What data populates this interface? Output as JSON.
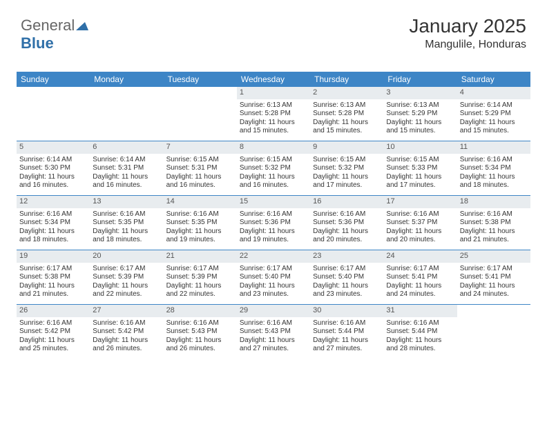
{
  "logo": {
    "part1": "General",
    "part2": "Blue"
  },
  "title": "January 2025",
  "location": "Mangulile, Honduras",
  "colors": {
    "header_bg": "#3d85c6",
    "header_text": "#ffffff",
    "daynum_bg": "#e8ecef",
    "body_text": "#333333",
    "rule": "#3d85c6"
  },
  "day_headers": [
    "Sunday",
    "Monday",
    "Tuesday",
    "Wednesday",
    "Thursday",
    "Friday",
    "Saturday"
  ],
  "first_weekday_index": 3,
  "days_in_month": 31,
  "day_data": {
    "1": {
      "sunrise": "6:13 AM",
      "sunset": "5:28 PM",
      "daylight": "11 hours and 15 minutes."
    },
    "2": {
      "sunrise": "6:13 AM",
      "sunset": "5:28 PM",
      "daylight": "11 hours and 15 minutes."
    },
    "3": {
      "sunrise": "6:13 AM",
      "sunset": "5:29 PM",
      "daylight": "11 hours and 15 minutes."
    },
    "4": {
      "sunrise": "6:14 AM",
      "sunset": "5:29 PM",
      "daylight": "11 hours and 15 minutes."
    },
    "5": {
      "sunrise": "6:14 AM",
      "sunset": "5:30 PM",
      "daylight": "11 hours and 16 minutes."
    },
    "6": {
      "sunrise": "6:14 AM",
      "sunset": "5:31 PM",
      "daylight": "11 hours and 16 minutes."
    },
    "7": {
      "sunrise": "6:15 AM",
      "sunset": "5:31 PM",
      "daylight": "11 hours and 16 minutes."
    },
    "8": {
      "sunrise": "6:15 AM",
      "sunset": "5:32 PM",
      "daylight": "11 hours and 16 minutes."
    },
    "9": {
      "sunrise": "6:15 AM",
      "sunset": "5:32 PM",
      "daylight": "11 hours and 17 minutes."
    },
    "10": {
      "sunrise": "6:15 AM",
      "sunset": "5:33 PM",
      "daylight": "11 hours and 17 minutes."
    },
    "11": {
      "sunrise": "6:16 AM",
      "sunset": "5:34 PM",
      "daylight": "11 hours and 18 minutes."
    },
    "12": {
      "sunrise": "6:16 AM",
      "sunset": "5:34 PM",
      "daylight": "11 hours and 18 minutes."
    },
    "13": {
      "sunrise": "6:16 AM",
      "sunset": "5:35 PM",
      "daylight": "11 hours and 18 minutes."
    },
    "14": {
      "sunrise": "6:16 AM",
      "sunset": "5:35 PM",
      "daylight": "11 hours and 19 minutes."
    },
    "15": {
      "sunrise": "6:16 AM",
      "sunset": "5:36 PM",
      "daylight": "11 hours and 19 minutes."
    },
    "16": {
      "sunrise": "6:16 AM",
      "sunset": "5:36 PM",
      "daylight": "11 hours and 20 minutes."
    },
    "17": {
      "sunrise": "6:16 AM",
      "sunset": "5:37 PM",
      "daylight": "11 hours and 20 minutes."
    },
    "18": {
      "sunrise": "6:16 AM",
      "sunset": "5:38 PM",
      "daylight": "11 hours and 21 minutes."
    },
    "19": {
      "sunrise": "6:17 AM",
      "sunset": "5:38 PM",
      "daylight": "11 hours and 21 minutes."
    },
    "20": {
      "sunrise": "6:17 AM",
      "sunset": "5:39 PM",
      "daylight": "11 hours and 22 minutes."
    },
    "21": {
      "sunrise": "6:17 AM",
      "sunset": "5:39 PM",
      "daylight": "11 hours and 22 minutes."
    },
    "22": {
      "sunrise": "6:17 AM",
      "sunset": "5:40 PM",
      "daylight": "11 hours and 23 minutes."
    },
    "23": {
      "sunrise": "6:17 AM",
      "sunset": "5:40 PM",
      "daylight": "11 hours and 23 minutes."
    },
    "24": {
      "sunrise": "6:17 AM",
      "sunset": "5:41 PM",
      "daylight": "11 hours and 24 minutes."
    },
    "25": {
      "sunrise": "6:17 AM",
      "sunset": "5:41 PM",
      "daylight": "11 hours and 24 minutes."
    },
    "26": {
      "sunrise": "6:16 AM",
      "sunset": "5:42 PM",
      "daylight": "11 hours and 25 minutes."
    },
    "27": {
      "sunrise": "6:16 AM",
      "sunset": "5:42 PM",
      "daylight": "11 hours and 26 minutes."
    },
    "28": {
      "sunrise": "6:16 AM",
      "sunset": "5:43 PM",
      "daylight": "11 hours and 26 minutes."
    },
    "29": {
      "sunrise": "6:16 AM",
      "sunset": "5:43 PM",
      "daylight": "11 hours and 27 minutes."
    },
    "30": {
      "sunrise": "6:16 AM",
      "sunset": "5:44 PM",
      "daylight": "11 hours and 27 minutes."
    },
    "31": {
      "sunrise": "6:16 AM",
      "sunset": "5:44 PM",
      "daylight": "11 hours and 28 minutes."
    }
  },
  "labels": {
    "sunrise": "Sunrise:",
    "sunset": "Sunset:",
    "daylight": "Daylight:"
  }
}
